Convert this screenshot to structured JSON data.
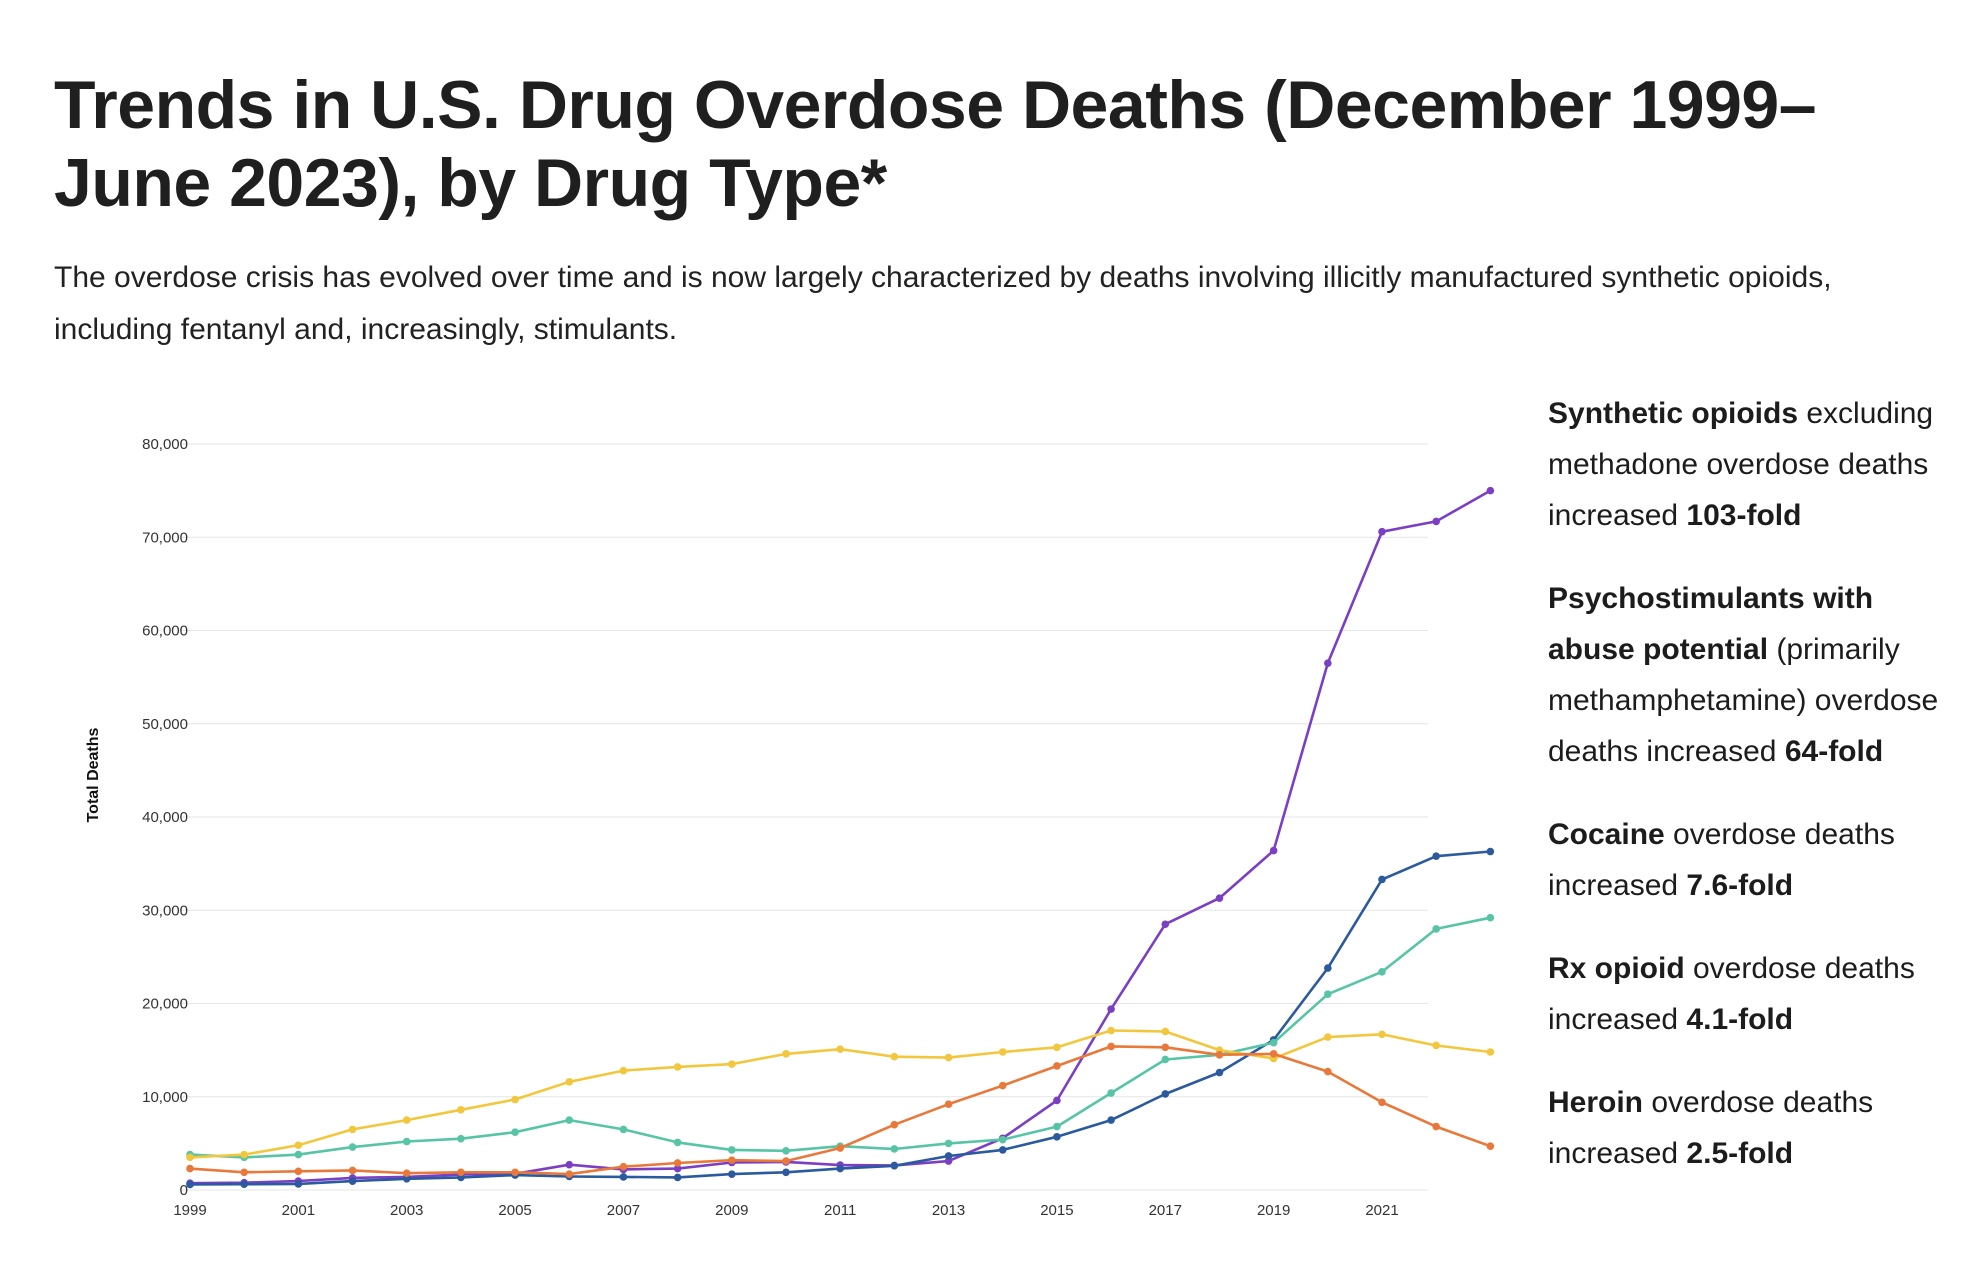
{
  "title": "Trends in U.S. Drug Overdose Deaths (December 1999–June 2023), by Drug Type*",
  "subtitle": "The overdose crisis has evolved over time and is now largely characterized by deaths involving illicitly manufactured synthetic opioids, including fentanyl and, increasingly, stimulants.",
  "stats": [
    {
      "bold": "Synthetic opioids",
      "text": " excluding methadone overdose deaths increased ",
      "fold": "103-fold"
    },
    {
      "bold": "Psychostimulants with abuse potential",
      "text": " (primarily methamphetamine) overdose deaths increased ",
      "fold": "64-fold"
    },
    {
      "bold": "Cocaine",
      "text": " overdose deaths increased ",
      "fold": "7.6-fold"
    },
    {
      "bold": "Rx opioid",
      "text": " overdose deaths increased ",
      "fold": "4.1-fold"
    },
    {
      "bold": "Heroin",
      "text": " overdose deaths increased ",
      "fold": "2.5-fold"
    }
  ],
  "chart_data": {
    "type": "line",
    "xlabel": "",
    "ylabel": "Total Deaths",
    "ylim": [
      0,
      80000
    ],
    "yticks": [
      0,
      10000,
      20000,
      30000,
      40000,
      50000,
      60000,
      70000,
      80000
    ],
    "yticklabels": [
      "0",
      "10,000",
      "20,000",
      "30,000",
      "40,000",
      "50,000",
      "60,000",
      "70,000",
      "80,000"
    ],
    "xticklabels": [
      "1999",
      "2001",
      "2003",
      "2005",
      "2007",
      "2009",
      "2011",
      "2013",
      "2015",
      "2017",
      "2019",
      "2021"
    ],
    "grid": true,
    "legend": "none",
    "x": [
      1999,
      2000,
      2001,
      2002,
      2003,
      2004,
      2005,
      2006,
      2007,
      2008,
      2009,
      2010,
      2011,
      2012,
      2013,
      2014,
      2015,
      2016,
      2017,
      2018,
      2019,
      2020,
      2021,
      2022,
      2023
    ],
    "series": [
      {
        "color": "#7b3fc4",
        "values": [
          730,
          780,
          960,
          1300,
          1400,
          1660,
          1740,
          2710,
          2210,
          2300,
          2950,
          3010,
          2670,
          2630,
          3100,
          5550,
          9600,
          19400,
          28500,
          31300,
          36400,
          56500,
          70600,
          71700,
          75000
        ]
      },
      {
        "color": "#2b5a9e",
        "values": [
          590,
          620,
          650,
          950,
          1200,
          1350,
          1600,
          1450,
          1400,
          1350,
          1700,
          1900,
          2300,
          2600,
          3650,
          4300,
          5700,
          7500,
          10300,
          12600,
          16100,
          23800,
          33300,
          35800,
          36300
        ]
      },
      {
        "color": "#57c4a6",
        "values": [
          3800,
          3500,
          3800,
          4600,
          5200,
          5500,
          6200,
          7500,
          6500,
          5100,
          4300,
          4200,
          4700,
          4400,
          5000,
          5400,
          6800,
          10400,
          14000,
          14500,
          15800,
          21000,
          23400,
          28000,
          29200
        ]
      },
      {
        "color": "#f2c73e",
        "values": [
          3500,
          3800,
          4800,
          6500,
          7500,
          8600,
          9700,
          11600,
          12800,
          13200,
          13500,
          14600,
          15100,
          14300,
          14200,
          14800,
          15300,
          17100,
          17000,
          15000,
          14100,
          16400,
          16700,
          15500,
          14800
        ]
      },
      {
        "color": "#e8793a",
        "values": [
          2300,
          1900,
          2000,
          2100,
          1800,
          1900,
          1900,
          1700,
          2500,
          2900,
          3200,
          3100,
          4500,
          7000,
          9200,
          11200,
          13300,
          15400,
          15300,
          14500,
          14600,
          12700,
          9400,
          6800,
          4700
        ]
      }
    ]
  }
}
